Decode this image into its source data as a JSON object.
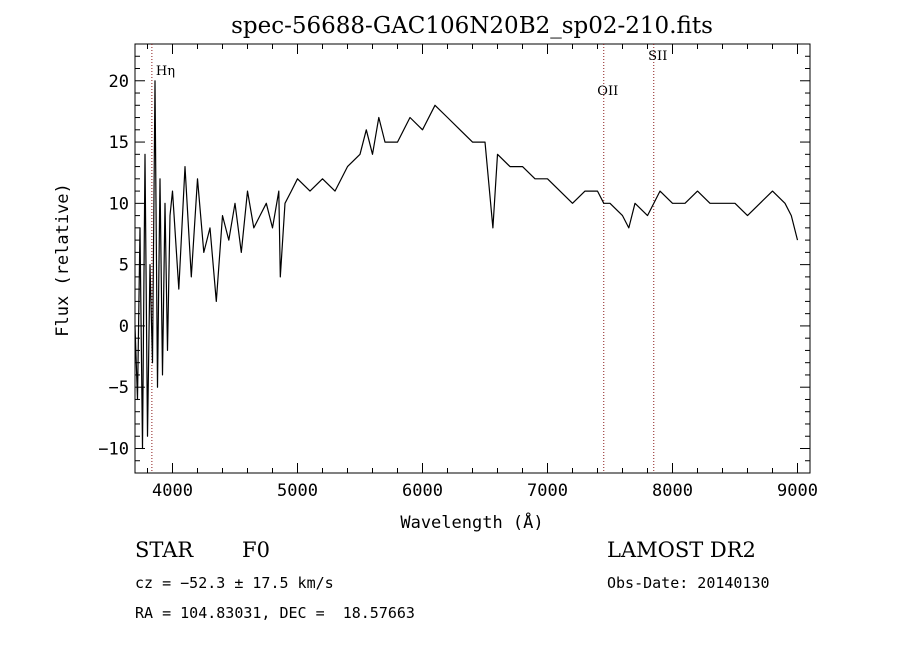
{
  "chart_data": {
    "type": "line",
    "title": "spec-56688-GAC106N20B2_sp02-210.fits",
    "xlabel": "Wavelength (Å)",
    "ylabel": "Flux (relative)",
    "xlim": [
      3700,
      9100
    ],
    "ylim": [
      -12,
      23
    ],
    "xticks": [
      4000,
      5000,
      6000,
      7000,
      8000,
      9000
    ],
    "yticks": [
      -10,
      -5,
      0,
      5,
      10,
      15,
      20
    ],
    "grid": false,
    "line_color": "#000000",
    "marker_color": "#8b1a1a",
    "series": [
      {
        "x": [
          3700,
          3720,
          3740,
          3760,
          3780,
          3800,
          3820,
          3840,
          3860,
          3880,
          3900,
          3920,
          3940,
          3960,
          3980,
          4000,
          4050,
          4100,
          4150,
          4200,
          4250,
          4300,
          4350,
          4400,
          4450,
          4500,
          4550,
          4600,
          4650,
          4700,
          4750,
          4800,
          4850,
          4862,
          4900,
          4950,
          5000,
          5100,
          5200,
          5300,
          5400,
          5500,
          5550,
          5600,
          5650,
          5700,
          5800,
          5900,
          6000,
          6100,
          6200,
          6300,
          6400,
          6500,
          6563,
          6600,
          6700,
          6800,
          6900,
          7000,
          7100,
          7200,
          7300,
          7400,
          7450,
          7500,
          7600,
          7650,
          7700,
          7800,
          7900,
          8000,
          8100,
          8200,
          8300,
          8400,
          8500,
          8600,
          8700,
          8800,
          8900,
          8950,
          9000
        ],
        "y": [
          0,
          -6,
          8,
          -10,
          14,
          -9,
          5,
          -3,
          20,
          -5,
          12,
          -4,
          10,
          -2,
          9,
          11,
          3,
          13,
          4,
          12,
          6,
          8,
          2,
          9,
          7,
          10,
          6,
          11,
          8,
          9,
          10,
          8,
          11,
          4,
          10,
          11,
          12,
          11,
          12,
          11,
          13,
          14,
          16,
          14,
          17,
          15,
          15,
          17,
          16,
          18,
          17,
          16,
          15,
          15,
          8,
          14,
          13,
          13,
          12,
          12,
          11,
          10,
          11,
          11,
          10,
          10,
          9,
          8,
          10,
          9,
          11,
          10,
          10,
          11,
          10,
          10,
          10,
          9,
          10,
          11,
          10,
          9,
          7
        ]
      }
    ],
    "markers": [
      {
        "name": "Hη",
        "x": 3835
      },
      {
        "name": "OII",
        "x": 7450
      },
      {
        "name": "SII",
        "x": 7850
      }
    ]
  },
  "info": {
    "object_class": "STAR",
    "subclass": "F0",
    "survey": "LAMOST DR2",
    "redshift_text": "cz = −52.3 ± 17.5 km/s",
    "obs_date_text": "Obs-Date: 20140130",
    "coords_text": "RA = 104.83031, DEC =  18.57663"
  }
}
